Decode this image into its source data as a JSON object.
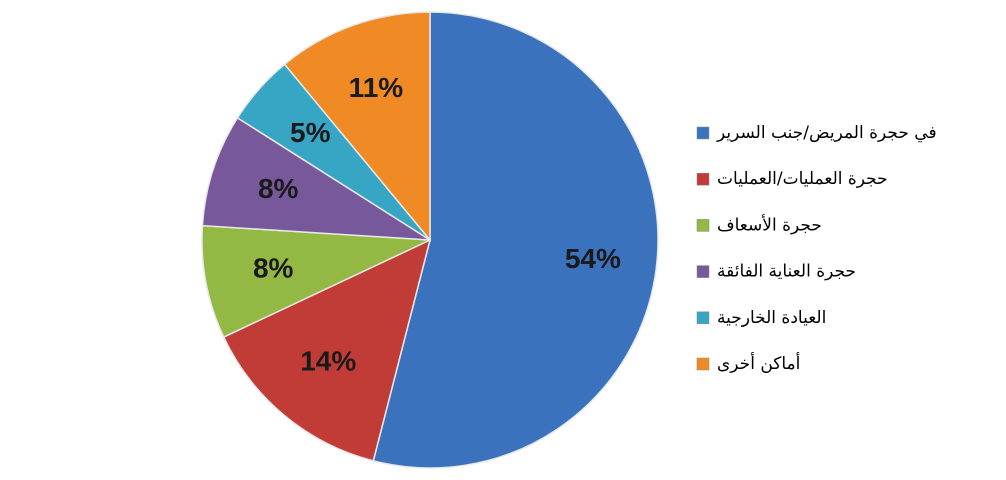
{
  "chart_data": {
    "type": "pie",
    "categories": [
      "في حجرة المريض/جنب السرير",
      "حجرة العمليات/العمليات",
      "حجرة الأسعاف",
      "حجرة العناية الفائقة",
      "العيادة الخارجية",
      "أماكن أخرى"
    ],
    "values": [
      54,
      14,
      8,
      8,
      5,
      11
    ],
    "value_labels": [
      "54%",
      "14%",
      "8%",
      "8%",
      "5%",
      "11%"
    ],
    "colors": [
      "#3b72be",
      "#c23c37",
      "#93b844",
      "#77589b",
      "#37a6c4",
      "#f08a24"
    ],
    "legend": "right"
  }
}
